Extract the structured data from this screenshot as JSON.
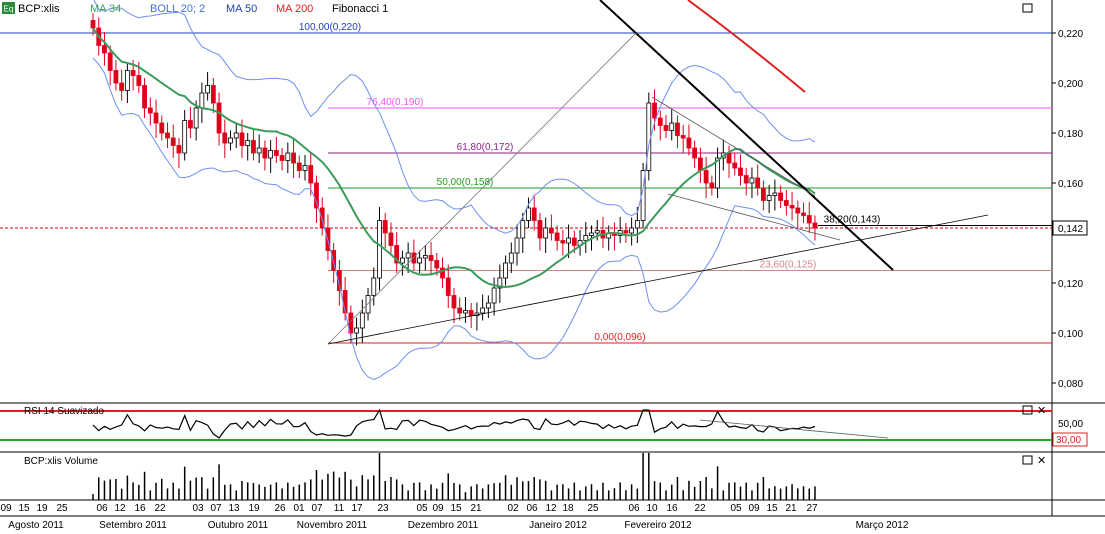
{
  "toolbar": {
    "icon_text": "Eq",
    "symbol": "BCP:xlis",
    "indicators": [
      {
        "label": "MA 34",
        "color": "#3b9b5a"
      },
      {
        "label": "BOLL 20; 2",
        "color": "#3f6fe0"
      },
      {
        "label": "MA 50",
        "color": "#1f3fb8"
      },
      {
        "label": "MA 200",
        "color": "#e02020"
      },
      {
        "label": "Fibonacci 1",
        "color": "#000000"
      }
    ]
  },
  "colors": {
    "up": "#ffffff",
    "down": "#e0001b",
    "ma34": "#3b9b5a",
    "boll": "#6f8ff0",
    "ma200": "#e02020",
    "last_price": "#d00000"
  },
  "chart_data": {
    "type": "candlestick",
    "symbol": "BCP:xlis",
    "y_axis": {
      "ticks": [
        "0,220",
        "0,200",
        "0,180",
        "0,160",
        "0,142",
        "0,120",
        "0,100",
        "0,080"
      ],
      "ylim": [
        0.075,
        0.232
      ]
    },
    "last_price": "0,142",
    "fibonacci_levels": [
      {
        "label": "100,00(0,220)",
        "value": 0.22,
        "color": "#1f3fb8"
      },
      {
        "label": "76,40(0,190)",
        "value": 0.19,
        "color": "#ee55ee"
      },
      {
        "label": "61,80(0,172)",
        "value": 0.172,
        "color": "#882288"
      },
      {
        "label": "50,00(0,158)",
        "value": 0.158,
        "color": "#229922"
      },
      {
        "label": "38,20(0,143)",
        "value": 0.143,
        "color": "#000000"
      },
      {
        "label": "23,60(0,125)",
        "value": 0.125,
        "color": "#cc8888"
      },
      {
        "label": "0,00(0,096)",
        "value": 0.096,
        "color": "#dd2222"
      }
    ],
    "x_day_labels": [
      "09",
      "15",
      "19",
      "25",
      "06",
      "12",
      "16",
      "22",
      "03",
      "07",
      "13",
      "19",
      "26",
      "01",
      "07",
      "11",
      "17",
      "23",
      "05",
      "09",
      "15",
      "21",
      "02",
      "06",
      "12",
      "18",
      "25",
      "06",
      "10",
      "16",
      "22",
      "05",
      "09",
      "15",
      "21",
      "27"
    ],
    "x_month_labels": [
      "Agosto 2011",
      "Setembro 2011",
      "Outubro 2011",
      "Novembro 2011",
      "Dezembro 2011",
      "Janeiro 2012",
      "Fevereiro 2012",
      "Março 2012"
    ],
    "close_series": [
      0.222,
      0.215,
      0.212,
      0.205,
      0.2,
      0.197,
      0.205,
      0.203,
      0.199,
      0.19,
      0.188,
      0.184,
      0.18,
      0.178,
      0.175,
      0.172,
      0.185,
      0.182,
      0.19,
      0.196,
      0.199,
      0.192,
      0.18,
      0.176,
      0.178,
      0.18,
      0.175,
      0.177,
      0.172,
      0.174,
      0.17,
      0.173,
      0.171,
      0.169,
      0.172,
      0.168,
      0.165,
      0.167,
      0.16,
      0.15,
      0.142,
      0.133,
      0.125,
      0.117,
      0.108,
      0.1,
      0.102,
      0.108,
      0.115,
      0.122,
      0.145,
      0.14,
      0.135,
      0.128,
      0.13,
      0.132,
      0.128,
      0.13,
      0.131,
      0.129,
      0.126,
      0.122,
      0.115,
      0.11,
      0.108,
      0.109,
      0.107,
      0.108,
      0.11,
      0.112,
      0.118,
      0.122,
      0.128,
      0.132,
      0.138,
      0.145,
      0.15,
      0.145,
      0.138,
      0.142,
      0.14,
      0.137,
      0.136,
      0.138,
      0.135,
      0.137,
      0.139,
      0.14,
      0.141,
      0.138,
      0.14,
      0.139,
      0.141,
      0.14,
      0.142,
      0.145,
      0.165,
      0.192,
      0.186,
      0.183,
      0.181,
      0.184,
      0.179,
      0.178,
      0.174,
      0.17,
      0.165,
      0.16,
      0.158,
      0.17,
      0.172,
      0.168,
      0.166,
      0.163,
      0.16,
      0.162,
      0.158,
      0.153,
      0.155,
      0.156,
      0.153,
      0.151,
      0.15,
      0.148,
      0.147,
      0.144,
      0.142
    ],
    "series_names": [
      "MA 34",
      "BOLL 20; 2",
      "MA 50",
      "MA 200"
    ]
  },
  "rsi": {
    "title": "RSI 14 Suavizado",
    "level_high": "50,00",
    "level_low": "30,00"
  },
  "volume": {
    "title": "BCP:xlis Volume"
  }
}
